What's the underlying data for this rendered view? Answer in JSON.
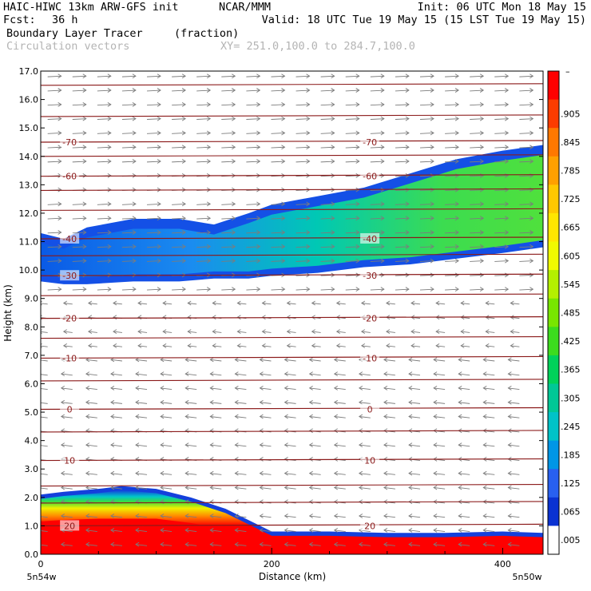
{
  "header": {
    "model": "HAIC-HIWC 13km ARW-GFS init",
    "org": "NCAR/MMM",
    "init": "Init: 06 UTC Mon 18 May 15",
    "fcst_label": "Fcst:",
    "fcst_value": "36 h",
    "valid": "Valid: 18 UTC Tue 19 May 15 (15 LST Tue 19 May 15)",
    "field1_name": "Boundary Layer Tracer",
    "field1_units": "(fraction)",
    "field2_name": "Circulation vectors",
    "xy": "XY= 251.0,100.0 to 284.7,100.0"
  },
  "chart_data": {
    "type": "heatmap",
    "ylabel": "Height (km)",
    "xlabel": "Distance (km)",
    "xlim": [
      0,
      435
    ],
    "ylim": [
      0,
      17
    ],
    "y_ticks": [
      0,
      1,
      2,
      3,
      4,
      5,
      6,
      7,
      8,
      9,
      10,
      11,
      12,
      13,
      14,
      15,
      16,
      17
    ],
    "y_tick_labels": [
      "0.0",
      "1.0",
      "2.0",
      "3.0",
      "4.0",
      "5.0",
      "6.0",
      "7.0",
      "8.0",
      "9.0",
      "10.0",
      "11.0",
      "12.0",
      "13.0",
      "14.0",
      "15.0",
      "16.0",
      "17.0"
    ],
    "x_ticks": [
      0,
      200,
      400
    ],
    "x_tick_labels": [
      "0",
      "200",
      "400"
    ],
    "x_end_labels": [
      "5n54w",
      "5n50w"
    ],
    "colorbar": {
      "top_label": "–",
      "levels": [
        ".905",
        ".845",
        ".785",
        ".725",
        ".665",
        ".605",
        ".545",
        ".485",
        ".425",
        ".365",
        ".305",
        ".245",
        ".185",
        ".125",
        ".065",
        ".005"
      ],
      "colors": [
        "#fe0000",
        "#fc3c00",
        "#ff7800",
        "#ffa000",
        "#ffc800",
        "#ffe600",
        "#f0fa00",
        "#b4f000",
        "#78e600",
        "#3cdc1e",
        "#00d25a",
        "#00c896",
        "#00c3c8",
        "#0096e6",
        "#2860f0",
        "#0a32d2",
        "#ffffff"
      ]
    },
    "temperature_contours": [
      {
        "label": "-70",
        "height": 14.5
      },
      {
        "label": "-60",
        "height": 13.3
      },
      {
        "label": "-40",
        "height": 11.1
      },
      {
        "label": "-30",
        "height": 9.8
      },
      {
        "label": "-20",
        "height": 8.3
      },
      {
        "label": "-10",
        "height": 6.9
      },
      {
        "label": "0",
        "height": 5.1
      },
      {
        "label": "10",
        "height": 3.3
      },
      {
        "label": "20",
        "height": 1.0
      }
    ],
    "tracer_upper_layer": {
      "x": [
        0,
        20,
        40,
        80,
        120,
        150,
        180,
        200,
        240,
        280,
        320,
        360,
        400,
        435
      ],
      "base": [
        9.6,
        9.5,
        9.5,
        9.6,
        9.6,
        9.7,
        9.7,
        9.8,
        9.9,
        10.1,
        10.2,
        10.4,
        10.6,
        10.8
      ],
      "top": [
        11.3,
        11.1,
        11.5,
        11.8,
        11.8,
        11.6,
        12.0,
        12.3,
        12.6,
        12.9,
        13.4,
        13.9,
        14.2,
        14.4
      ],
      "max_value": 0.32
    },
    "tracer_boundary_layer": {
      "x": [
        0,
        20,
        50,
        70,
        100,
        130,
        160,
        180,
        200,
        250,
        300,
        350,
        400,
        435
      ],
      "top": [
        2.1,
        2.2,
        2.3,
        2.4,
        2.3,
        2.0,
        1.6,
        1.2,
        0.8,
        0.8,
        0.75,
        0.75,
        0.8,
        0.75
      ],
      "max_value": 0.95
    },
    "grid": false
  }
}
